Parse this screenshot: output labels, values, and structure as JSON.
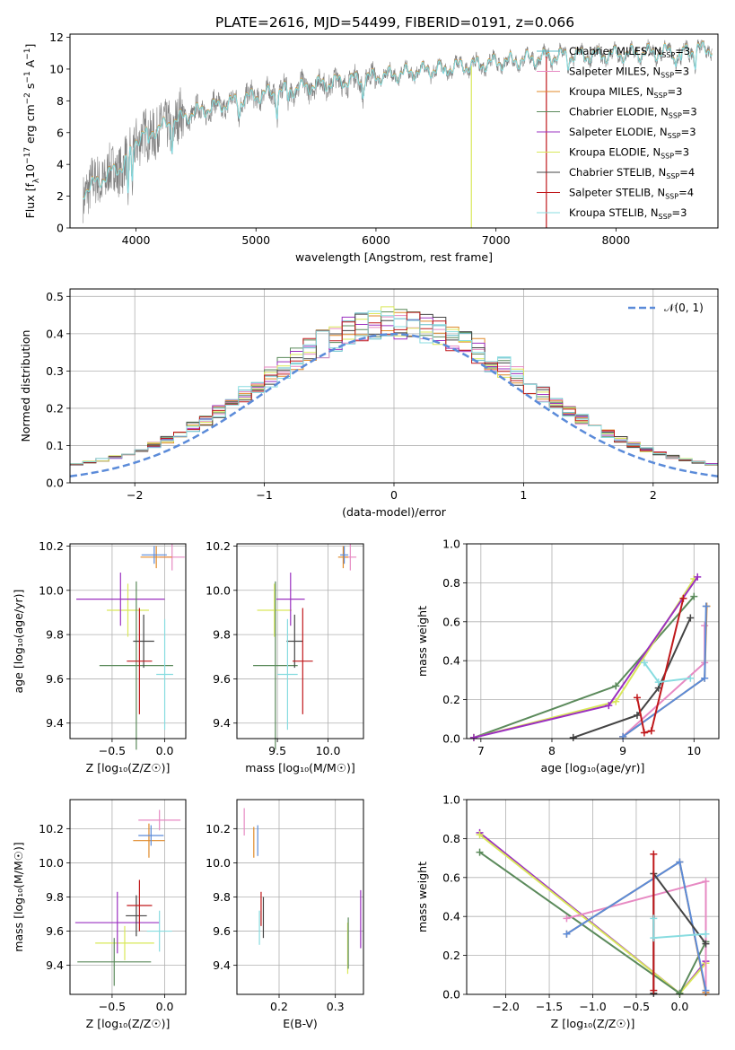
{
  "figure_title": "PLATE=2616, MJD=54499, FIBERID=0191, z=0.066",
  "legend_entries": [
    {
      "pre": "Chabrier MILES, N",
      "sub": "SSP",
      "post": "=3",
      "color": "#5dbbc8"
    },
    {
      "pre": "Salpeter MILES, N",
      "sub": "SSP",
      "post": "=3",
      "color": "#e78ac3"
    },
    {
      "pre": "Kroupa MILES, N",
      "sub": "SSP",
      "post": "=3",
      "color": "#e08a2a"
    },
    {
      "pre": "Chabrier ELODIE, N",
      "sub": "SSP",
      "post": "=3",
      "color": "#5b8a5b"
    },
    {
      "pre": "Salpeter ELODIE, N",
      "sub": "SSP",
      "post": "=3",
      "color": "#9b30c0"
    },
    {
      "pre": "Kroupa ELODIE, N",
      "sub": "SSP",
      "post": "=3",
      "color": "#d9e85a"
    },
    {
      "pre": "Chabrier STELIB, N",
      "sub": "SSP",
      "post": "=4",
      "color": "#444444"
    },
    {
      "pre": "Salpeter STELIB, N",
      "sub": "SSP",
      "post": "=4",
      "color": "#c0181b"
    },
    {
      "pre": "Kroupa STELIB, N",
      "sub": "SSP",
      "post": "=3",
      "color": "#88dce0"
    }
  ],
  "chart_data": [
    {
      "id": "spectrum",
      "type": "line",
      "title": "PLATE=2616, MJD=54499, FIBERID=0191, z=0.066",
      "xlabel": "wavelength [Angstrom, rest frame]",
      "ylabel_pre": "Flux [f",
      "ylabel_sub": "λ",
      "ylabel_mid": "10",
      "ylabel_sup": "−17",
      "ylabel_post": " erg cm",
      "ylabel_sup2": "−2",
      "ylabel_post2": " s",
      "ylabel_sup3": "−1",
      "ylabel_post3": " A",
      "ylabel_sup4": "−1",
      "ylabel_end": "]",
      "xlim": [
        3450,
        8850
      ],
      "ylim": [
        0,
        12.2
      ],
      "xticks": [
        4000,
        5000,
        6000,
        7000,
        8000
      ],
      "yticks": [
        0,
        2,
        4,
        6,
        8,
        10,
        12
      ],
      "data_color": "#808080",
      "model_color": "#7fd8e0",
      "continuum": [
        [
          3560,
          2.3
        ],
        [
          3700,
          3.0
        ],
        [
          3900,
          4.0
        ],
        [
          4000,
          5.6
        ],
        [
          4200,
          6.3
        ],
        [
          4500,
          7.3
        ],
        [
          5000,
          8.3
        ],
        [
          5500,
          9.0
        ],
        [
          6000,
          9.5
        ],
        [
          6500,
          10.0
        ],
        [
          7000,
          10.4
        ],
        [
          7500,
          10.8
        ],
        [
          8000,
          10.9
        ],
        [
          8500,
          11.1
        ],
        [
          8800,
          11.3
        ]
      ],
      "absorption": [
        [
          3934,
          2.5
        ],
        [
          3968,
          2.2
        ],
        [
          4102,
          0.9
        ],
        [
          4300,
          1.4
        ],
        [
          4861,
          0.8
        ],
        [
          5175,
          1.2
        ],
        [
          5270,
          0.6
        ],
        [
          5890,
          1.0
        ],
        [
          6563,
          0.6
        ],
        [
          7600,
          0.5
        ],
        [
          8498,
          0.8
        ],
        [
          8542,
          1.0
        ],
        [
          8662,
          0.9
        ]
      ]
    },
    {
      "id": "residuals",
      "type": "step-histogram",
      "xlabel": "(data-model)/error",
      "ylabel": "Normed distribution",
      "legend": "𝒩(0, 1)",
      "xlim": [
        -2.5,
        2.5
      ],
      "ylim": [
        0,
        0.52
      ],
      "xticks": [
        -2,
        -1,
        0,
        1,
        2
      ],
      "yticks": [
        0,
        0.1,
        0.2,
        0.3,
        0.4,
        0.5
      ],
      "bin_width": 0.1,
      "gaussian_color": "#5b8bd9"
    },
    {
      "id": "age_vs_Z",
      "type": "errorbar",
      "xlabel": "Z [log₁₀(Z/Z☉)]",
      "ylabel": "age  [log₁₀(age/yr)]",
      "xlim": [
        -0.9,
        0.2
      ],
      "ylim": [
        9.33,
        10.21
      ],
      "xticks": [
        -0.5,
        0.0
      ],
      "xticklabels": [
        "−0.5",
        "0.0"
      ],
      "yticks": [
        9.4,
        9.6,
        9.8,
        10.0,
        10.2
      ],
      "points": [
        {
          "x": 0.07,
          "xe": 0.12,
          "y": 10.15,
          "ye": 0.06,
          "c": "#e78ac3"
        },
        {
          "x": -0.08,
          "xe": 0.15,
          "y": 10.15,
          "ye": 0.05,
          "c": "#e08a2a"
        },
        {
          "x": -0.1,
          "xe": 0.12,
          "y": 10.16,
          "ye": 0.04,
          "c": "#5b8bd9"
        },
        {
          "x": -0.35,
          "xe": 0.2,
          "y": 9.91,
          "ye": 0.12,
          "c": "#d9e85a"
        },
        {
          "x": -0.42,
          "xe": 0.42,
          "y": 9.96,
          "ye": 0.12,
          "c": "#9b30c0"
        },
        {
          "x": -0.27,
          "xe": 0.35,
          "y": 9.66,
          "ye": 0.38,
          "c": "#5b8a5b"
        },
        {
          "x": -0.2,
          "xe": 0.1,
          "y": 9.77,
          "ye": 0.12,
          "c": "#444444"
        },
        {
          "x": -0.24,
          "xe": 0.12,
          "y": 9.68,
          "ye": 0.24,
          "c": "#c0181b"
        },
        {
          "x": 0.0,
          "xe": 0.08,
          "y": 9.62,
          "ye": 0.25,
          "c": "#88dce0"
        }
      ]
    },
    {
      "id": "age_vs_mass",
      "type": "errorbar",
      "xlabel": "mass [log₁₀(M/M☉)]",
      "ylabel": "",
      "xlim": [
        9.1,
        10.35
      ],
      "ylim": [
        9.33,
        10.21
      ],
      "xticks": [
        9.5,
        10.0
      ],
      "xticklabels": [
        "9.5",
        "10.0"
      ],
      "yticks": [
        9.4,
        9.6,
        9.8,
        10.0,
        10.2
      ],
      "points": [
        {
          "x": 10.22,
          "xe": 0.06,
          "y": 10.15,
          "ye": 0.06,
          "c": "#e78ac3"
        },
        {
          "x": 10.15,
          "xe": 0.05,
          "y": 10.15,
          "ye": 0.05,
          "c": "#e08a2a"
        },
        {
          "x": 10.16,
          "xe": 0.04,
          "y": 10.16,
          "ye": 0.04,
          "c": "#5b8bd9"
        },
        {
          "x": 9.47,
          "xe": 0.17,
          "y": 9.91,
          "ye": 0.12,
          "c": "#d9e85a"
        },
        {
          "x": 9.63,
          "xe": 0.14,
          "y": 9.96,
          "ye": 0.12,
          "c": "#9b30c0"
        },
        {
          "x": 9.48,
          "xe": 0.22,
          "y": 9.66,
          "ye": 0.38,
          "c": "#5b8a5b"
        },
        {
          "x": 9.67,
          "xe": 0.08,
          "y": 9.77,
          "ye": 0.12,
          "c": "#444444"
        },
        {
          "x": 9.75,
          "xe": 0.1,
          "y": 9.68,
          "ye": 0.24,
          "c": "#c0181b"
        },
        {
          "x": 9.6,
          "xe": 0.1,
          "y": 9.62,
          "ye": 0.25,
          "c": "#88dce0"
        }
      ]
    },
    {
      "id": "mass_weight_vs_age",
      "type": "line",
      "xlabel": "age  [log₁₀(age/yr)]",
      "ylabel": "mass weight",
      "xlim": [
        6.8,
        10.35
      ],
      "ylim": [
        0,
        1.0
      ],
      "xticks": [
        7,
        8,
        9,
        10
      ],
      "yticks": [
        0.0,
        0.2,
        0.4,
        0.6,
        0.8,
        1.0
      ],
      "yticklabels": [
        "0.0",
        "0.2",
        "0.4",
        "0.6",
        "0.8",
        "1.0"
      ],
      "series": [
        {
          "c": "#5b8a5b",
          "pts": [
            [
              6.9,
              0.005
            ],
            [
              8.9,
              0.27
            ],
            [
              10.0,
              0.73
            ]
          ]
        },
        {
          "c": "#d9e85a",
          "pts": [
            [
              6.9,
              0.005
            ],
            [
              8.9,
              0.19
            ],
            [
              10.0,
              0.82
            ]
          ]
        },
        {
          "c": "#9b30c0",
          "pts": [
            [
              6.9,
              0.005
            ],
            [
              8.8,
              0.17
            ],
            [
              10.05,
              0.83
            ]
          ]
        },
        {
          "c": "#e78ac3",
          "pts": [
            [
              9.0,
              0.01
            ],
            [
              10.15,
              0.39
            ],
            [
              10.15,
              0.58
            ]
          ]
        },
        {
          "c": "#e08a2a",
          "pts": [
            [
              9.0,
              0.01
            ],
            [
              10.15,
              0.31
            ],
            [
              10.18,
              0.68
            ]
          ]
        },
        {
          "c": "#5b8bd9",
          "pts": [
            [
              9.0,
              0.01
            ],
            [
              10.15,
              0.31
            ],
            [
              10.17,
              0.68
            ]
          ]
        },
        {
          "c": "#444444",
          "pts": [
            [
              8.3,
              0.005
            ],
            [
              9.2,
              0.12
            ],
            [
              9.5,
              0.26
            ],
            [
              9.95,
              0.62
            ]
          ]
        },
        {
          "c": "#c0181b",
          "pts": [
            [
              9.2,
              0.21
            ],
            [
              9.3,
              0.03
            ],
            [
              9.4,
              0.04
            ],
            [
              9.85,
              0.72
            ]
          ]
        },
        {
          "c": "#88dce0",
          "pts": [
            [
              9.3,
              0.39
            ],
            [
              9.5,
              0.29
            ],
            [
              9.95,
              0.31
            ]
          ]
        }
      ]
    },
    {
      "id": "mass_vs_Z",
      "type": "errorbar",
      "xlabel": "Z [log₁₀(Z/Z☉)]",
      "ylabel": "mass [log₁₀(M/M☉)]",
      "xlim": [
        -0.9,
        0.2
      ],
      "ylim": [
        9.23,
        10.37
      ],
      "xticks": [
        -0.5,
        0.0
      ],
      "xticklabels": [
        "−0.5",
        "0.0"
      ],
      "yticks": [
        9.4,
        9.6,
        9.8,
        10.0,
        10.2
      ],
      "points": [
        {
          "x": -0.05,
          "xe": 0.2,
          "y": 10.25,
          "ye": 0.06,
          "c": "#e78ac3"
        },
        {
          "x": -0.15,
          "xe": 0.15,
          "y": 10.13,
          "ye": 0.1,
          "c": "#e08a2a"
        },
        {
          "x": -0.13,
          "xe": 0.12,
          "y": 10.16,
          "ye": 0.06,
          "c": "#5b8bd9"
        },
        {
          "x": -0.38,
          "xe": 0.28,
          "y": 9.53,
          "ye": 0.1,
          "c": "#d9e85a"
        },
        {
          "x": -0.45,
          "xe": 0.4,
          "y": 9.65,
          "ye": 0.18,
          "c": "#9b30c0"
        },
        {
          "x": -0.48,
          "xe": 0.35,
          "y": 9.42,
          "ye": 0.14,
          "c": "#5b8a5b"
        },
        {
          "x": -0.27,
          "xe": 0.1,
          "y": 9.69,
          "ye": 0.12,
          "c": "#444444"
        },
        {
          "x": -0.24,
          "xe": 0.12,
          "y": 9.75,
          "ye": 0.15,
          "c": "#c0181b"
        },
        {
          "x": -0.05,
          "xe": 0.12,
          "y": 9.6,
          "ye": 0.12,
          "c": "#88dce0"
        }
      ]
    },
    {
      "id": "mass_vs_EBV",
      "type": "errorbar",
      "xlabel": "E(B-V)",
      "ylabel": "",
      "xlim": [
        0.125,
        0.35
      ],
      "ylim": [
        9.23,
        10.37
      ],
      "xticks": [
        0.2,
        0.3
      ],
      "xticklabels": [
        "0.2",
        "0.3"
      ],
      "yticks": [
        9.4,
        9.6,
        9.8,
        10.0,
        10.2
      ],
      "points": [
        {
          "x": 0.138,
          "xe": 0,
          "y": 10.24,
          "ye": 0.08,
          "c": "#e78ac3"
        },
        {
          "x": 0.155,
          "xe": 0,
          "y": 10.12,
          "ye": 0.09,
          "c": "#e08a2a"
        },
        {
          "x": 0.162,
          "xe": 0,
          "y": 10.13,
          "ye": 0.09,
          "c": "#5b8bd9"
        },
        {
          "x": 0.322,
          "xe": 0,
          "y": 9.5,
          "ye": 0.15,
          "c": "#d9e85a"
        },
        {
          "x": 0.345,
          "xe": 0,
          "y": 9.67,
          "ye": 0.17,
          "c": "#9b30c0"
        },
        {
          "x": 0.323,
          "xe": 0,
          "y": 9.53,
          "ye": 0.15,
          "c": "#5b8a5b"
        },
        {
          "x": 0.172,
          "xe": 0,
          "y": 9.68,
          "ye": 0.12,
          "c": "#444444"
        },
        {
          "x": 0.168,
          "xe": 0,
          "y": 9.73,
          "ye": 0.1,
          "c": "#c0181b"
        },
        {
          "x": 0.165,
          "xe": 0,
          "y": 9.62,
          "ye": 0.1,
          "c": "#88dce0"
        }
      ]
    },
    {
      "id": "mass_weight_vs_Z",
      "type": "line",
      "xlabel": "Z [log₁₀(Z/Z☉)]",
      "ylabel": "mass weight",
      "xlim": [
        -2.45,
        0.45
      ],
      "ylim": [
        0,
        1.0
      ],
      "xticks": [
        -2.0,
        -1.5,
        -1.0,
        -0.5,
        0.0
      ],
      "xticklabels": [
        "−2.0",
        "−1.5",
        "−1.0",
        "−0.5",
        "0.0"
      ],
      "yticks": [
        0.0,
        0.2,
        0.4,
        0.6,
        0.8,
        1.0
      ],
      "yticklabels": [
        "0.0",
        "0.2",
        "0.4",
        "0.6",
        "0.8",
        "1.0"
      ],
      "series": [
        {
          "c": "#9b30c0",
          "pts": [
            [
              -2.3,
              0.83
            ],
            [
              0.0,
              0.005
            ],
            [
              0.3,
              0.17
            ]
          ]
        },
        {
          "c": "#d9e85a",
          "pts": [
            [
              -2.3,
              0.82
            ],
            [
              0.0,
              0.005
            ],
            [
              0.3,
              0.16
            ]
          ]
        },
        {
          "c": "#5b8a5b",
          "pts": [
            [
              -2.3,
              0.73
            ],
            [
              0.0,
              0.005
            ],
            [
              0.3,
              0.27
            ]
          ]
        },
        {
          "c": "#e78ac3",
          "pts": [
            [
              -1.3,
              0.39
            ],
            [
              0.3,
              0.58
            ],
            [
              0.3,
              0.01
            ]
          ]
        },
        {
          "c": "#e08a2a",
          "pts": [
            [
              -1.3,
              0.31
            ],
            [
              0.0,
              0.68
            ],
            [
              0.3,
              0.01
            ]
          ]
        },
        {
          "c": "#5b8bd9",
          "pts": [
            [
              -1.3,
              0.31
            ],
            [
              0.0,
              0.68
            ],
            [
              0.3,
              0.02
            ]
          ]
        },
        {
          "c": "#444444",
          "pts": [
            [
              -0.3,
              0.005
            ],
            [
              -0.3,
              0.62
            ],
            [
              0.3,
              0.26
            ]
          ]
        },
        {
          "c": "#c0181b",
          "pts": [
            [
              -0.3,
              0.02
            ],
            [
              -0.3,
              0.72
            ]
          ]
        },
        {
          "c": "#88dce0",
          "pts": [
            [
              -0.3,
              0.39
            ],
            [
              -0.3,
              0.29
            ],
            [
              0.3,
              0.31
            ]
          ]
        }
      ]
    }
  ]
}
